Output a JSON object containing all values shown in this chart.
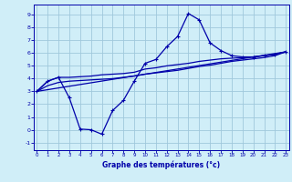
{
  "xlabel": "Graphe des températures (°c)",
  "bg_color": "#d0eef8",
  "grid_color": "#a0c8dc",
  "line_color": "#0000aa",
  "xlim": [
    -0.3,
    23.3
  ],
  "ylim": [
    -1.6,
    9.8
  ],
  "yticks": [
    -1,
    0,
    1,
    2,
    3,
    4,
    5,
    6,
    7,
    8,
    9
  ],
  "xticks": [
    0,
    1,
    2,
    3,
    4,
    5,
    6,
    7,
    8,
    9,
    10,
    11,
    12,
    13,
    14,
    15,
    16,
    17,
    18,
    19,
    20,
    21,
    22,
    23
  ],
  "curve1_x": [
    0,
    1,
    2,
    3,
    4,
    5,
    6,
    7,
    8,
    9,
    10,
    11,
    12,
    13,
    14,
    15,
    16,
    17,
    18,
    19,
    20,
    21,
    22,
    23
  ],
  "curve1_y": [
    3.0,
    3.8,
    4.1,
    2.5,
    0.05,
    0.0,
    -0.35,
    1.5,
    2.3,
    3.8,
    5.2,
    5.5,
    6.5,
    7.3,
    9.1,
    8.6,
    6.8,
    6.2,
    5.8,
    5.7,
    5.7,
    5.8,
    5.9,
    6.1
  ],
  "curve2_x": [
    0,
    1,
    2,
    3,
    4,
    5,
    6,
    7,
    8,
    9,
    10,
    11,
    12,
    13,
    14,
    15,
    16,
    17,
    18,
    19,
    20,
    21,
    22,
    23
  ],
  "curve2_y": [
    3.0,
    3.8,
    4.1,
    4.1,
    4.15,
    4.2,
    4.3,
    4.35,
    4.4,
    4.5,
    4.75,
    4.85,
    5.0,
    5.1,
    5.2,
    5.35,
    5.45,
    5.55,
    5.6,
    5.65,
    5.7,
    5.8,
    5.9,
    6.1
  ],
  "curve3_x": [
    0,
    1,
    2,
    3,
    4,
    5,
    6,
    7,
    8,
    9,
    10,
    11,
    12,
    13,
    14,
    15,
    16,
    17,
    18,
    19,
    20,
    21,
    22,
    23
  ],
  "curve3_y": [
    3.0,
    3.45,
    3.7,
    3.8,
    3.85,
    3.9,
    3.95,
    4.0,
    4.1,
    4.2,
    4.35,
    4.45,
    4.55,
    4.65,
    4.8,
    4.95,
    5.05,
    5.2,
    5.35,
    5.45,
    5.55,
    5.65,
    5.8,
    6.1
  ],
  "line4_x": [
    0,
    23
  ],
  "line4_y": [
    3.0,
    6.1
  ]
}
